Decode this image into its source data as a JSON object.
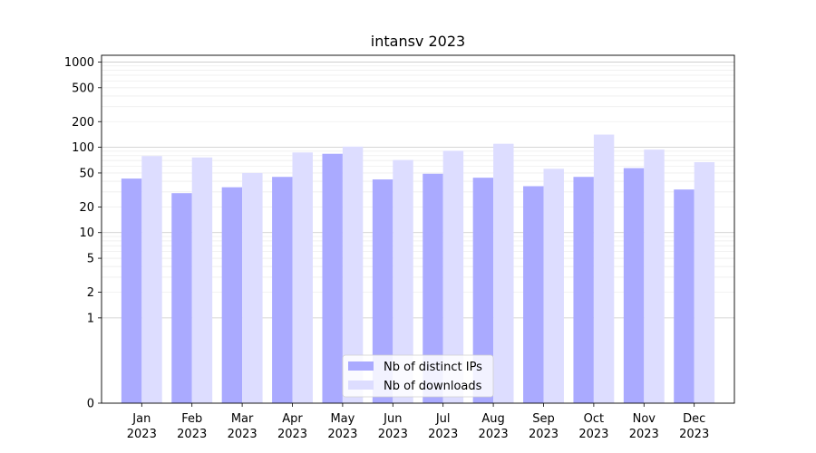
{
  "chart_data": {
    "type": "bar",
    "title": "intansv 2023",
    "xlabel": "",
    "ylabel": "",
    "yscale": "symlog",
    "ylim": [
      0,
      1200
    ],
    "yticks": [
      0,
      1,
      2,
      5,
      10,
      20,
      50,
      100,
      200,
      500,
      1000
    ],
    "grid": true,
    "legend_position": "lower-center",
    "categories": [
      "Jan",
      "Feb",
      "Mar",
      "Apr",
      "May",
      "Jun",
      "Jul",
      "Aug",
      "Sep",
      "Oct",
      "Nov",
      "Dec"
    ],
    "category_sublabel": "2023",
    "series": [
      {
        "name": "Nb of distinct IPs",
        "color": "#aaaaff",
        "values": [
          43,
          29,
          34,
          45,
          84,
          42,
          49,
          44,
          35,
          45,
          57,
          32
        ]
      },
      {
        "name": "Nb of downloads",
        "color": "#ddddff",
        "values": [
          79,
          76,
          50,
          87,
          102,
          71,
          91,
          110,
          56,
          141,
          94,
          67
        ]
      }
    ]
  }
}
